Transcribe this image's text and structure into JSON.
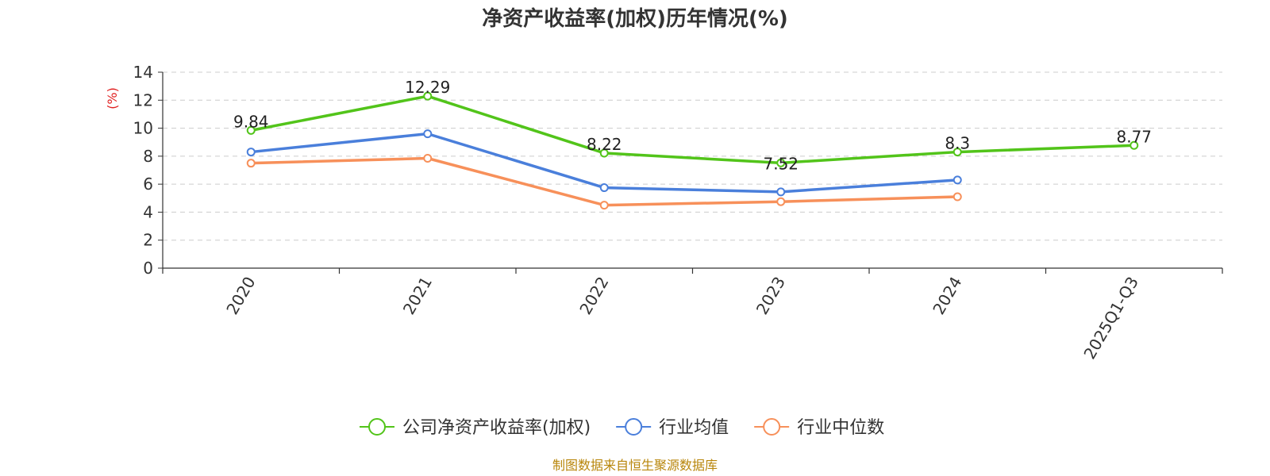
{
  "chart_data": {
    "type": "line",
    "title": "净资产收益率(加权)历年情况(%)",
    "ylabel": "(%)",
    "ylabel_color": "#e02020",
    "ylim": [
      0,
      14
    ],
    "yticks": [
      0,
      2,
      4,
      6,
      8,
      10,
      12,
      14
    ],
    "grid": true,
    "legend_position": "bottom",
    "categories": [
      "2020",
      "2021",
      "2022",
      "2023",
      "2024",
      "2025Q1-Q3"
    ],
    "series": [
      {
        "name": "公司净资产收益率(加权)",
        "color": "#52c41a",
        "values": [
          9.84,
          12.29,
          8.22,
          7.52,
          8.3,
          8.77
        ],
        "labels": [
          "9.84",
          "12.29",
          "8.22",
          "7.52",
          "8.3",
          "8.77"
        ]
      },
      {
        "name": "行业均值",
        "color": "#4a7fdb",
        "values": [
          8.3,
          9.6,
          5.75,
          5.45,
          6.3,
          null
        ]
      },
      {
        "name": "行业中位数",
        "color": "#f7905a",
        "values": [
          7.5,
          7.85,
          4.5,
          4.75,
          5.1,
          null
        ]
      }
    ]
  },
  "source_text": "制图数据来自恒生聚源数据库",
  "source_color": "#b8860b"
}
